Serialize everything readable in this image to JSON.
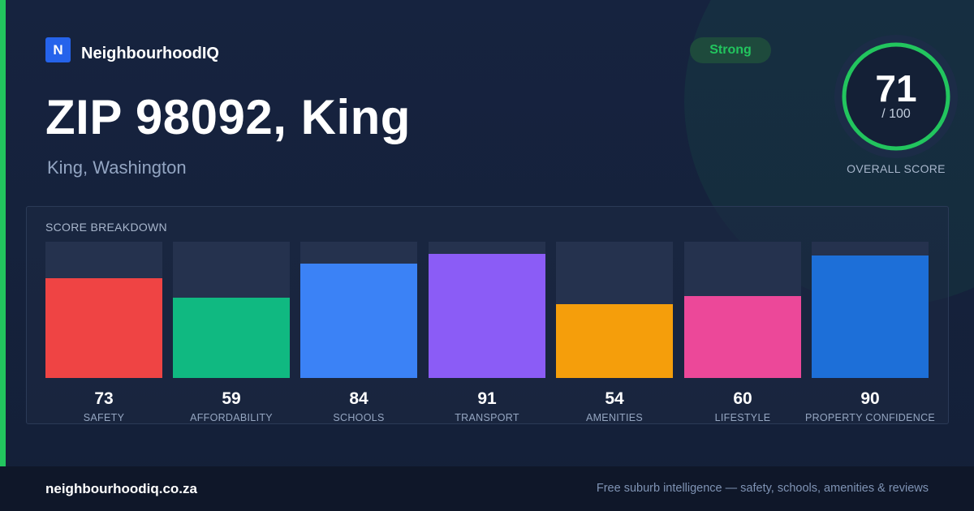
{
  "brand": {
    "logo_letter": "N",
    "name": "NeighbourhoodIQ"
  },
  "header": {
    "title": "ZIP 98092, King",
    "subtitle": "King, Washington"
  },
  "badge": {
    "label": "Strong",
    "color": "#22c55e"
  },
  "overall": {
    "score": "71",
    "max": "/ 100",
    "caption": "OVERALL SCORE",
    "fraction": 0.71
  },
  "breakdown": {
    "title": "SCORE BREAKDOWN",
    "items": [
      {
        "label": "SAFETY",
        "value": "73",
        "level": 0.73,
        "color": "#ef4444"
      },
      {
        "label": "AFFORDABILITY",
        "value": "59",
        "level": 0.59,
        "color": "#10b981"
      },
      {
        "label": "SCHOOLS",
        "value": "84",
        "level": 0.84,
        "color": "#3b82f6"
      },
      {
        "label": "TRANSPORT",
        "value": "91",
        "level": 0.91,
        "color": "#8b5cf6"
      },
      {
        "label": "AMENITIES",
        "value": "54",
        "level": 0.54,
        "color": "#f59e0b"
      },
      {
        "label": "LIFESTYLE",
        "value": "60",
        "level": 0.6,
        "color": "#ec4899"
      },
      {
        "label": "PROPERTY CONFIDENCE",
        "value": "90",
        "level": 0.9,
        "color": "#1d6fd8"
      }
    ]
  },
  "footer": {
    "domain": "neighbourhoodiq.co.za",
    "tagline": "Free suburb intelligence — safety, schools, amenities & reviews"
  },
  "colors": {
    "accent": "#22c55e",
    "background": "#152038",
    "brand": "#2563eb"
  }
}
